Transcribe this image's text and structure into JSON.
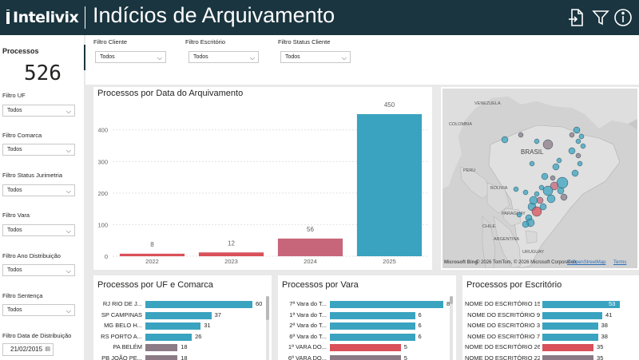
{
  "header": {
    "brand": "Intelivix",
    "title": "Indícios de Arquivamento",
    "icons": [
      "export-icon",
      "filter-icon",
      "info-icon"
    ]
  },
  "kpi": {
    "label": "Processos",
    "value": "526"
  },
  "left_filters": [
    {
      "label": "Filtro UF",
      "value": "Todos"
    },
    {
      "label": "Filtro Comarca",
      "value": "Todos"
    },
    {
      "label": "Filtro Status Jurimetria",
      "value": "Todos"
    },
    {
      "label": "Filtro Vara",
      "value": "Todos"
    },
    {
      "label": "Filtro Ano Distribuição",
      "value": "Todos"
    },
    {
      "label": "Filtro Sentença",
      "value": "Todos"
    }
  ],
  "date_filter": {
    "label": "Filtro Data de Distribuição",
    "value": "21/02/2015"
  },
  "top_filters": [
    {
      "label": "Filtro Cliente",
      "value": "Todos"
    },
    {
      "label": "Filtro Escritório",
      "value": "Todos"
    },
    {
      "label": "Filtro Status Cliente",
      "value": "Todos"
    }
  ],
  "colors": {
    "header": "#1a3540",
    "teal": "#3aa3c0",
    "red": "#d9505a",
    "rose": "#c7667a",
    "mauve": "#8c7a86"
  },
  "chart_data": [
    {
      "type": "bar",
      "title": "Processos por Data do Arquivamento",
      "categories": [
        "2022",
        "2023",
        "2024",
        "2025"
      ],
      "values": [
        8,
        12,
        56,
        450
      ],
      "bar_colors": [
        "#d9505a",
        "#d9505a",
        "#c7667a",
        "#3aa3c0"
      ],
      "ylim": [
        0,
        460
      ],
      "yticks": [
        "0",
        "100",
        "200",
        "300",
        "400"
      ],
      "grid": true
    },
    {
      "type": "bar",
      "orientation": "horizontal",
      "title": "Processos por UF e Comarca",
      "categories": [
        "RJ RIO DE J...",
        "SP CAMPINAS",
        "MG BELO H...",
        "RS PORTO A...",
        "PA BELÉM",
        "PB JOÃO PE..."
      ],
      "values": [
        60,
        37,
        31,
        26,
        18,
        18
      ],
      "bar_colors": [
        "#3aa3c0",
        "#3aa3c0",
        "#3aa3c0",
        "#3aa3c0",
        "#8c7a86",
        "#8c7a86"
      ]
    },
    {
      "type": "bar",
      "orientation": "horizontal",
      "title": "Processos por Vara",
      "categories": [
        "7ª Vara do T...",
        "1ª Vara do T...",
        "2ª Vara do T...",
        "6ª Vara do T...",
        "1ª VARA DO...",
        "6ª VARA DO..."
      ],
      "values": [
        8,
        6,
        6,
        6,
        5,
        5
      ],
      "bar_colors": [
        "#3aa3c0",
        "#3aa3c0",
        "#3aa3c0",
        "#3aa3c0",
        "#d9505a",
        "#8c7a86"
      ]
    },
    {
      "type": "bar",
      "orientation": "horizontal",
      "title": "Processos por Escritório",
      "categories": [
        "NOME DO ESCRITÓRIO 15",
        "NOME DO ESCRITÓRIO 9",
        "NOME DO ESCRITÓRIO 3",
        "NOME DO ESCRITÓRIO 7",
        "NOME DO ESCRITÓRIO 26",
        "NOME DO ESCRITÓRIO 22"
      ],
      "values": [
        53,
        41,
        38,
        38,
        35,
        35
      ],
      "bar_colors": [
        "#3aa3c0",
        "#3aa3c0",
        "#3aa3c0",
        "#3aa3c0",
        "#d9505a",
        "#8c7a86"
      ]
    }
  ],
  "map": {
    "labels": {
      "venezuela": "VENEZUELA",
      "colombia": "COLOMBIA",
      "peru": "PERU",
      "bolivia": "BOLIVIA",
      "brasil": "BRASIL",
      "paraguay": "PARAGUAY",
      "chile": "CHILE",
      "argentina": "ARGENTINA",
      "uruguay": "URUGUAY"
    },
    "credit": "© 2026 TomTom, © 2026 Microsoft Corporation",
    "osm": "© OpenStreetMap",
    "terms": "Terms",
    "ms_logo": "Microsoft Bing"
  }
}
